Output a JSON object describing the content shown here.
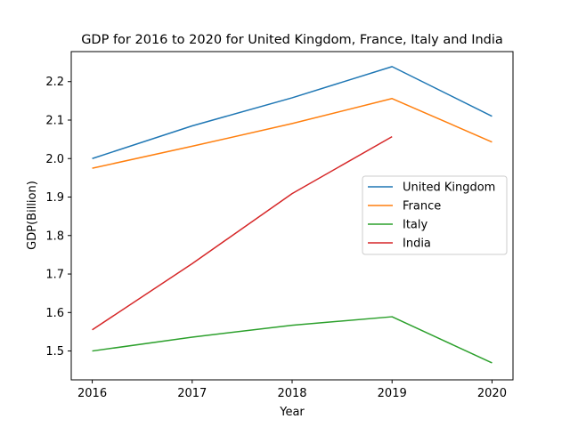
{
  "chart_data": {
    "type": "line",
    "title": "GDP for 2016 to 2020 for United Kingdom, France, Italy and India",
    "xlabel": "Year",
    "ylabel": "GDP(Billion)",
    "x": [
      2016,
      2017,
      2018,
      2019,
      2020
    ],
    "xlim": [
      2015.79,
      2020.21
    ],
    "ylim": [
      1.425,
      2.278
    ],
    "xticks": [
      "2016",
      "2017",
      "2018",
      "2019",
      "2020"
    ],
    "yticks": [
      "1.5",
      "1.6",
      "1.7",
      "1.8",
      "1.9",
      "2.0",
      "2.1",
      "2.2"
    ],
    "grid": false,
    "legend_position": "center-right",
    "series": [
      {
        "name": "United Kingdom",
        "color": "#1f77b4",
        "values": [
          2.0,
          2.085,
          2.158,
          2.239,
          2.11
        ]
      },
      {
        "name": "France",
        "color": "#ff7f0e",
        "values": [
          1.975,
          2.032,
          2.091,
          2.156,
          2.043
        ]
      },
      {
        "name": "Italy",
        "color": "#2ca02c",
        "values": [
          1.5,
          1.536,
          1.567,
          1.589,
          1.469
        ]
      },
      {
        "name": "India",
        "color": "#d62728",
        "values": [
          1.555,
          1.727,
          1.909,
          2.057,
          null
        ]
      }
    ]
  }
}
